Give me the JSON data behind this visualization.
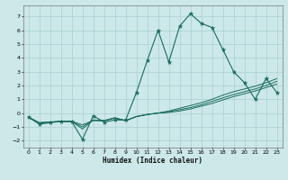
{
  "xlabel": "Humidex (Indice chaleur)",
  "bg_color": "#cce8e8",
  "line_color": "#1a6b5e",
  "grid_color": "#aacfcf",
  "xlim": [
    -0.5,
    23.5
  ],
  "ylim": [
    -2.5,
    7.8
  ],
  "xticks": [
    0,
    1,
    2,
    3,
    4,
    5,
    6,
    7,
    8,
    9,
    10,
    11,
    12,
    13,
    14,
    15,
    16,
    17,
    18,
    19,
    20,
    21,
    22,
    23
  ],
  "yticks": [
    -2,
    -1,
    0,
    1,
    2,
    3,
    4,
    5,
    6,
    7
  ],
  "series1_x": [
    0,
    1,
    2,
    3,
    4,
    5,
    6,
    7,
    8,
    9,
    10,
    11,
    12,
    13,
    14,
    15,
    16,
    17,
    18,
    19,
    20,
    21,
    22,
    23
  ],
  "series1_y": [
    -0.3,
    -0.7,
    -0.65,
    -0.6,
    -0.6,
    -0.85,
    -0.55,
    -0.55,
    -0.35,
    -0.55,
    -0.25,
    -0.1,
    0.0,
    0.15,
    0.35,
    0.55,
    0.75,
    1.0,
    1.3,
    1.55,
    1.75,
    1.95,
    2.2,
    2.5
  ],
  "series2_x": [
    0,
    1,
    2,
    3,
    4,
    5,
    6,
    7,
    8,
    9,
    10,
    11,
    12,
    13,
    14,
    15,
    16,
    17,
    18,
    19,
    20,
    21,
    22,
    23
  ],
  "series2_y": [
    -0.3,
    -0.7,
    -0.65,
    -0.6,
    -0.6,
    -1.0,
    -0.5,
    -0.55,
    -0.35,
    -0.55,
    -0.25,
    -0.1,
    0.0,
    0.1,
    0.25,
    0.4,
    0.6,
    0.85,
    1.1,
    1.35,
    1.55,
    1.75,
    2.0,
    2.3
  ],
  "series3_x": [
    0,
    1,
    2,
    3,
    4,
    5,
    6,
    7,
    8,
    9,
    10,
    11,
    12,
    13,
    14,
    15,
    16,
    17,
    18,
    19,
    20,
    21,
    22,
    23
  ],
  "series3_y": [
    -0.3,
    -0.7,
    -0.65,
    -0.6,
    -0.6,
    -1.15,
    -0.5,
    -0.55,
    -0.35,
    -0.55,
    -0.25,
    -0.1,
    0.0,
    0.05,
    0.15,
    0.3,
    0.5,
    0.7,
    0.95,
    1.2,
    1.4,
    1.6,
    1.85,
    2.1
  ],
  "main_x": [
    0,
    1,
    2,
    3,
    4,
    5,
    6,
    7,
    8,
    9,
    10,
    11,
    12,
    13,
    14,
    15,
    16,
    17,
    18,
    19,
    20,
    21,
    22,
    23
  ],
  "main_y": [
    -0.3,
    -0.8,
    -0.7,
    -0.6,
    -0.6,
    -1.9,
    -0.2,
    -0.65,
    -0.5,
    -0.5,
    1.5,
    3.8,
    6.0,
    3.7,
    6.3,
    7.2,
    6.5,
    6.2,
    4.6,
    3.0,
    2.2,
    1.0,
    2.5,
    1.5
  ]
}
